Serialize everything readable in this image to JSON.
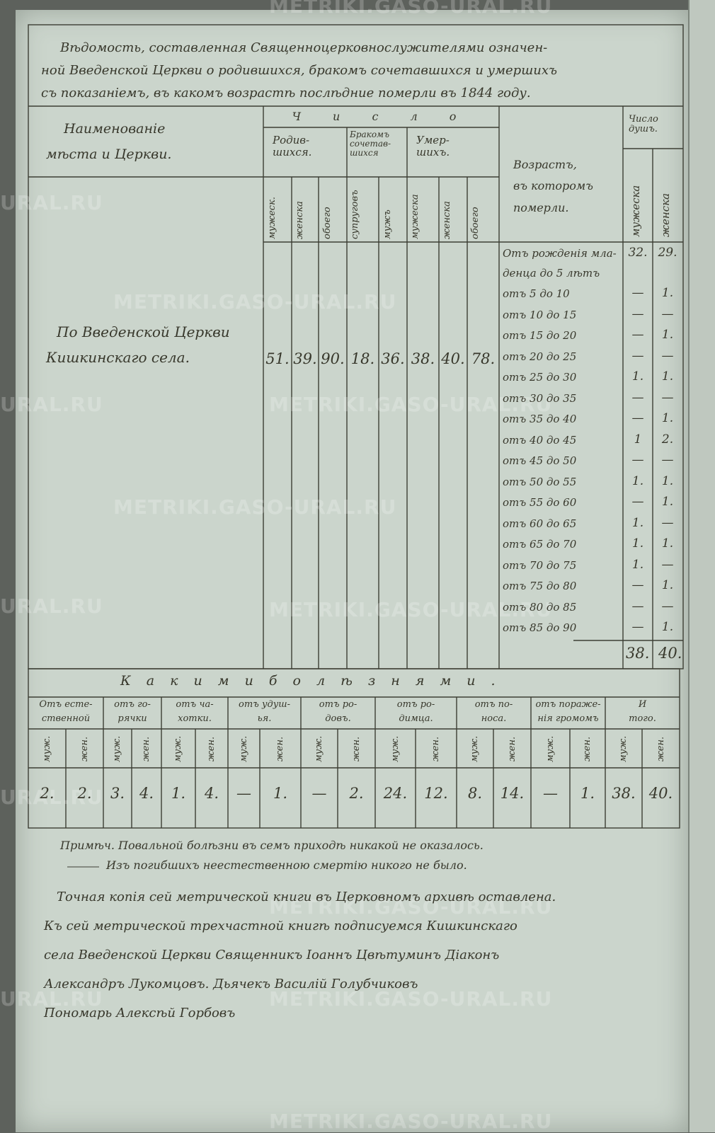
{
  "watermark": "METRIKI.GASO-URAL.RU",
  "watermark_partial": "URAL.RU",
  "title_lines": [
    "Вѣдомость, составленная Священноцерковнослужителями означен-",
    "ной Введенской Церкви о родившихся, бракомъ сочетавшихся и умершихъ",
    "съ показанiемъ, въ какомъ возрастѣ послѣдние померли въ 1844 году."
  ],
  "header": {
    "place_col": [
      "Наименованiе",
      "мѣста и Церкви."
    ],
    "number_group": "Ч и с л о",
    "born": [
      "Родив-",
      "шихся."
    ],
    "married": [
      "Бракомъ",
      "сочетав-",
      "шихся"
    ],
    "died": [
      "Умер-",
      "шихъ."
    ],
    "age_col": [
      "Возрастъ,",
      "въ которомъ",
      "померли."
    ],
    "souls": [
      "Число",
      "душъ."
    ],
    "sub": [
      "мужеск.",
      "женска",
      "обоего",
      "супруговъ",
      "мужъ",
      "мужеска",
      "женска",
      "обоего"
    ],
    "souls_sub": [
      "мужеска",
      "женска"
    ]
  },
  "place_name": [
    "По Введенской Церкви",
    "Кишкинскаго села."
  ],
  "counts": [
    "51.",
    "39.",
    "90.",
    "18.",
    "36.",
    "38.",
    "40.",
    "78."
  ],
  "age_rows": [
    {
      "label": "Отъ рожденiя мла-",
      "label2": "денца до 5 лѣтъ",
      "m": "32.",
      "f": "29."
    },
    {
      "label": "отъ 5 до 10",
      "m": "—",
      "f": "1."
    },
    {
      "label": "отъ 10 до 15",
      "m": "—",
      "f": "—"
    },
    {
      "label": "отъ 15 до 20",
      "m": "—",
      "f": "1."
    },
    {
      "label": "отъ 20 до 25",
      "m": "—",
      "f": "—"
    },
    {
      "label": "отъ 25 до 30",
      "m": "1.",
      "f": "1."
    },
    {
      "label": "отъ 30 до 35",
      "m": "—",
      "f": "—"
    },
    {
      "label": "отъ 35 до 40",
      "m": "—",
      "f": "1."
    },
    {
      "label": "отъ 40 до 45",
      "m": "1",
      "f": "2."
    },
    {
      "label": "отъ 45 до 50",
      "m": "—",
      "f": "—"
    },
    {
      "label": "отъ 50 до 55",
      "m": "1.",
      "f": "1."
    },
    {
      "label": "отъ 55 до 60",
      "m": "—",
      "f": "1."
    },
    {
      "label": "отъ 60 до 65",
      "m": "1.",
      "f": "—"
    },
    {
      "label": "отъ 65 до 70",
      "m": "1.",
      "f": "1."
    },
    {
      "label": "отъ 70 до 75",
      "m": "1.",
      "f": "—"
    },
    {
      "label": "отъ 75 до 80",
      "m": "—",
      "f": "1."
    },
    {
      "label": "отъ 80 до 85",
      "m": "—",
      "f": "—"
    },
    {
      "label": "отъ 85 до 90",
      "m": "—",
      "f": "1."
    }
  ],
  "age_totals": {
    "m": "38.",
    "f": "40."
  },
  "diseases": {
    "heading": "К а к и м и   б о л ѣ з н я м и .",
    "groups": [
      {
        "l1": "Отъ есте-",
        "l2": "ственной",
        "m": "2.",
        "f": "2."
      },
      {
        "l1": "отъ го-",
        "l2": "рячки",
        "m": "3.",
        "f": "4."
      },
      {
        "l1": "отъ ча-",
        "l2": "хотки.",
        "m": "1.",
        "f": "4."
      },
      {
        "l1": "отъ удуш-",
        "l2": "ья.",
        "m": "—",
        "f": "1."
      },
      {
        "l1": "отъ ро-",
        "l2": "довъ.",
        "m": "—",
        "f": "2."
      },
      {
        "l1": "отъ ро-",
        "l2": "димца.",
        "m": "24.",
        "f": "12."
      },
      {
        "l1": "отъ по-",
        "l2": "носа.",
        "m": "8.",
        "f": "14."
      },
      {
        "l1": "отъ пораже-",
        "l2": "нiя громомъ",
        "m": "—",
        "f": "1."
      },
      {
        "l1": "И",
        "l2": "того.",
        "m": "38.",
        "f": "40."
      }
    ],
    "m_label": "муж.",
    "f_label": "жен."
  },
  "notes": [
    "Примѣч. Повальной болѣзни въ семъ приходѣ никакой не оказалось.",
    "Изъ погибшихъ неестественною смертiю никого не было."
  ],
  "certification": [
    "Точная копiя сей метрической книги въ Церковномъ архивѣ оставлена.",
    "Къ сей метрической трехчастной книгѣ подписуемся Кишкинскаго",
    "села Введенской Церкви Священникъ Iоаннъ Цвѣтуминъ Дiаконъ",
    "Александръ Лукомцовъ. Дьячекъ Василiй Голубчиковъ",
    "Пономарь Алексѣй Горбовъ"
  ]
}
